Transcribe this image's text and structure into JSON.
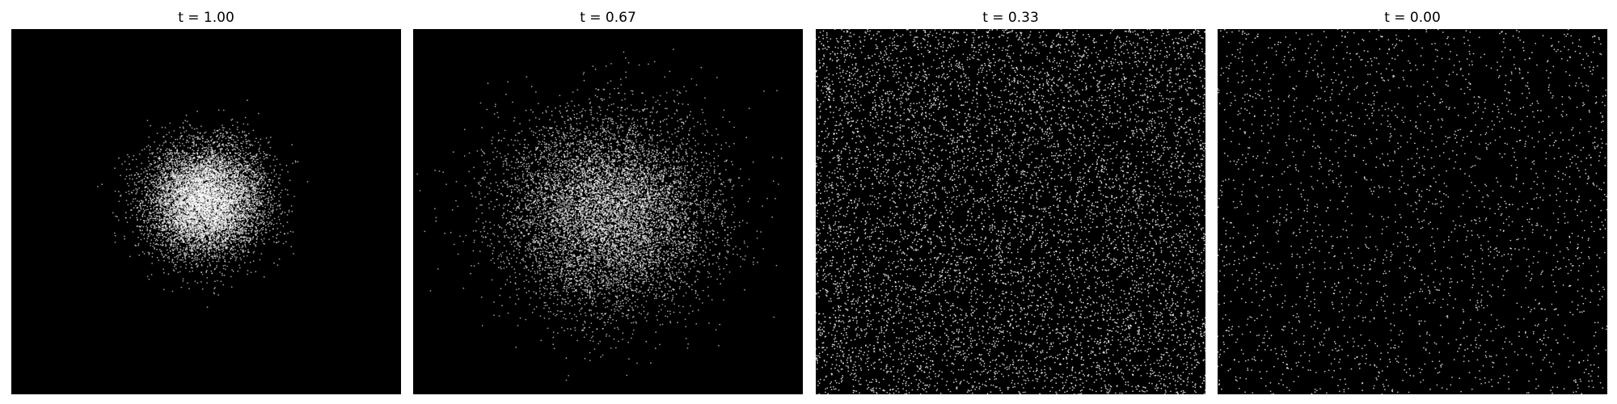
{
  "chart_data": [
    {
      "type": "scatter",
      "title": "t = 1.00",
      "background_color": "#000000",
      "point_color": "#ffffff",
      "distribution": "concentrated gaussian blob",
      "spread": 0.15,
      "center": [
        0.5,
        0.53
      ],
      "n_points": 9000,
      "xlim": [
        0,
        1
      ],
      "ylim": [
        0,
        1
      ],
      "axes_visible": false
    },
    {
      "type": "scatter",
      "title": "t = 0.67",
      "background_color": "#000000",
      "point_color": "#ffffff",
      "distribution": "wider gaussian blob",
      "spread": 0.26,
      "center": [
        0.5,
        0.5
      ],
      "n_points": 9000,
      "xlim": [
        0,
        1
      ],
      "ylim": [
        0,
        1
      ],
      "axes_visible": false
    },
    {
      "type": "scatter",
      "title": "t = 0.33",
      "background_color": "#000000",
      "point_color": "#ffffff",
      "distribution": "near-uniform",
      "spread": 1.0,
      "center": [
        0.5,
        0.5
      ],
      "n_points": 8000,
      "xlim": [
        0,
        1
      ],
      "ylim": [
        0,
        1
      ],
      "axes_visible": false
    },
    {
      "type": "scatter",
      "title": "t = 0.00",
      "background_color": "#000000",
      "point_color": "#ffffff",
      "distribution": "uniform sparse",
      "spread": 1.0,
      "center": [
        0.5,
        0.5
      ],
      "n_points": 2400,
      "xlim": [
        0,
        1
      ],
      "ylim": [
        0,
        1
      ],
      "axes_visible": false
    }
  ]
}
